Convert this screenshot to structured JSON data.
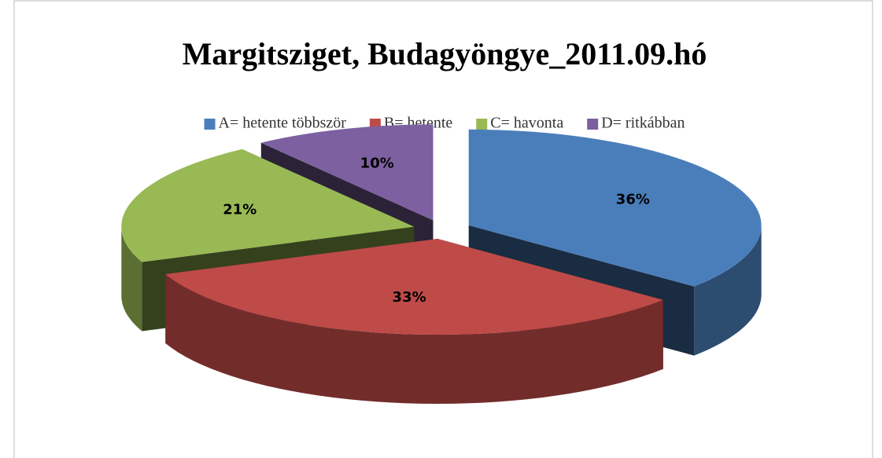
{
  "chart_data": {
    "type": "pie3d",
    "title": "Margitsziget, Budagyöngye_2011.09.hó",
    "categories": [
      "A= hetente többször",
      "B= hetente",
      "C= havonta",
      "D= ritkábban"
    ],
    "values": [
      36,
      33,
      21,
      10
    ],
    "value_labels": [
      "36%",
      "33%",
      "21%",
      "10%"
    ],
    "colors": [
      "#4a7ebb",
      "#be4b48",
      "#98b954",
      "#7d60a0"
    ],
    "legend": "top"
  }
}
